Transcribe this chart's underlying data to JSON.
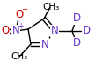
{
  "bg_color": "#ffffff",
  "bond_color": "#000000",
  "atom_colors": {
    "N": "#6633cc",
    "O": "#cc0000",
    "C": "#000000",
    "D": "#6633cc"
  },
  "figsize": [
    1.17,
    0.78
  ],
  "dpi": 100,
  "lw": 1.0
}
